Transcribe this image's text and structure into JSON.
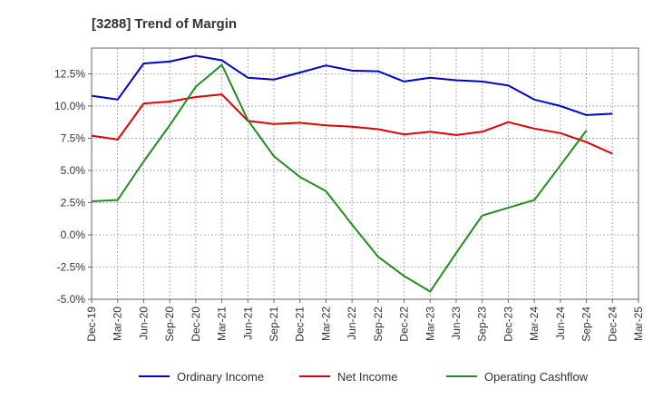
{
  "chart_data": {
    "type": "line",
    "title": "[3288]  Trend of Margin",
    "xlabel": "",
    "ylabel": "",
    "x": [
      "Dec-19",
      "Mar-20",
      "Jun-20",
      "Sep-20",
      "Dec-20",
      "Mar-21",
      "Jun-21",
      "Sep-21",
      "Dec-21",
      "Mar-22",
      "Jun-22",
      "Sep-22",
      "Dec-22",
      "Mar-23",
      "Jun-23",
      "Sep-23",
      "Dec-23",
      "Mar-24",
      "Jun-24",
      "Sep-24",
      "Dec-24",
      "Mar-25"
    ],
    "ylim": [
      -5.0,
      14.5
    ],
    "yticks": [
      -5.0,
      -2.5,
      0.0,
      2.5,
      5.0,
      7.5,
      10.0,
      12.5
    ],
    "ytick_labels": [
      "-5.0%",
      "-2.5%",
      "0.0%",
      "2.5%",
      "5.0%",
      "7.5%",
      "10.0%",
      "12.5%"
    ],
    "grid": true,
    "legend_position": "bottom",
    "series": [
      {
        "name": "Ordinary Income",
        "color": "#0000cc",
        "values": [
          10.8,
          10.5,
          13.3,
          13.45,
          13.9,
          13.55,
          12.2,
          12.05,
          12.6,
          13.15,
          12.75,
          12.7,
          11.9,
          12.2,
          12.0,
          11.9,
          11.6,
          10.5,
          10.0,
          9.3,
          9.4,
          null
        ]
      },
      {
        "name": "Net Income",
        "color": "#dd0000",
        "values": [
          7.7,
          7.4,
          10.2,
          10.35,
          10.7,
          10.9,
          8.85,
          8.6,
          8.7,
          8.5,
          8.4,
          8.2,
          7.8,
          8.0,
          7.75,
          8.0,
          8.75,
          8.25,
          7.9,
          7.2,
          6.3,
          null
        ]
      },
      {
        "name": "Operating Cashflow",
        "color": "#228b22",
        "values": [
          2.6,
          2.7,
          5.7,
          8.5,
          11.5,
          13.2,
          8.9,
          6.1,
          4.5,
          3.4,
          0.8,
          -1.7,
          -3.2,
          -4.4,
          -1.4,
          1.5,
          2.1,
          2.7,
          5.4,
          8.1,
          null,
          null
        ]
      }
    ]
  }
}
